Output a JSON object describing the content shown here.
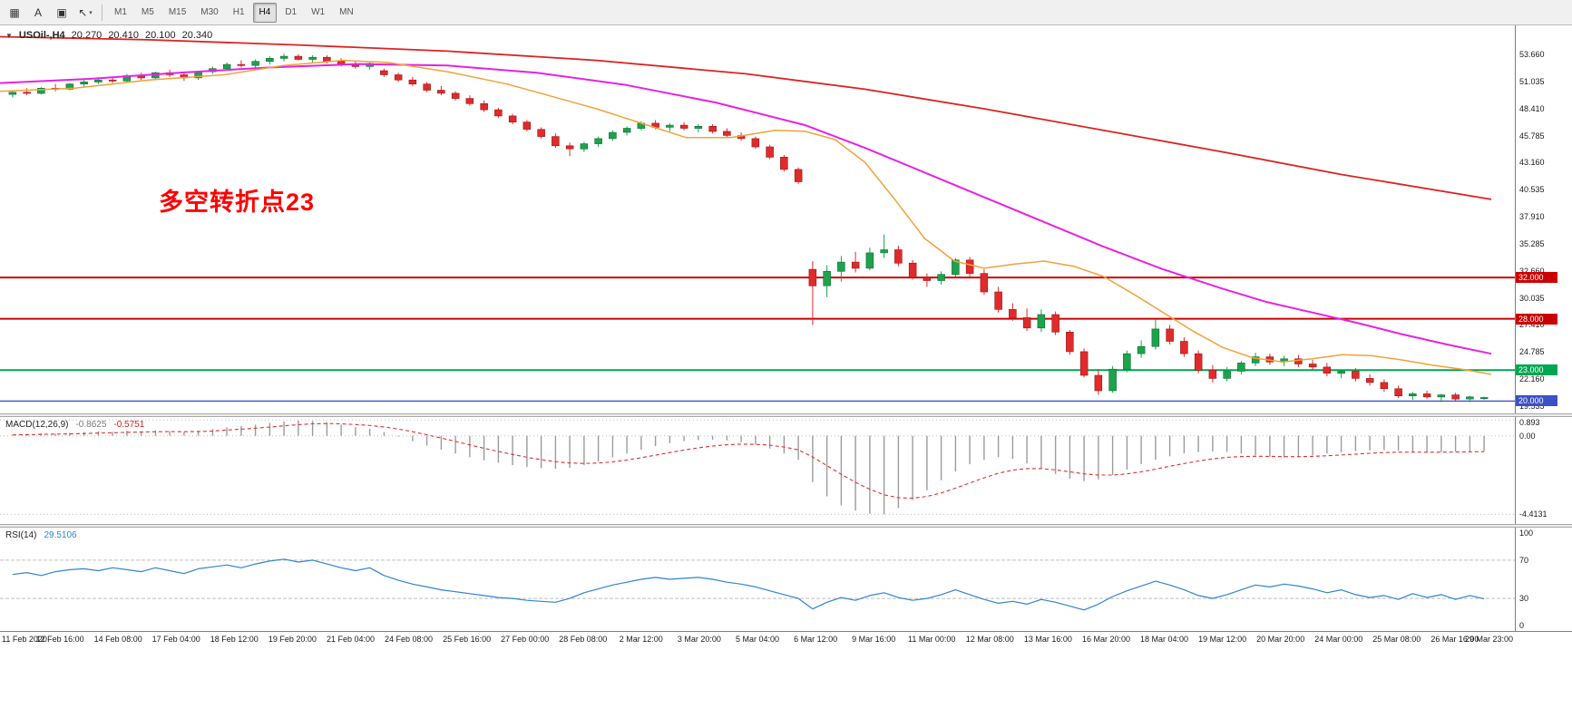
{
  "toolbar": {
    "buttons": [
      {
        "name": "chart-grid-icon",
        "glyph": "▦"
      },
      {
        "name": "text-label-icon",
        "glyph": "A"
      },
      {
        "name": "text-box-icon",
        "glyph": "▣"
      },
      {
        "name": "cursor-tool-icon",
        "glyph": "↖",
        "caret": "▾"
      }
    ],
    "timeframes": [
      "M1",
      "M5",
      "M15",
      "M30",
      "H1",
      "H4",
      "D1",
      "W1",
      "MN"
    ],
    "active_timeframe": "H4"
  },
  "chart": {
    "collapse_icon": "▼",
    "symbol_label": "USOil-,H4",
    "ohlc": [
      "20.270",
      "20.410",
      "20.100",
      "20.340"
    ],
    "annotation": {
      "text": "多空转折点23",
      "color": "#ff0000"
    }
  },
  "chart_data": {
    "type": "candlestick",
    "symbol": "USOil",
    "timeframe": "H4",
    "y_range": [
      18.8,
      56.5
    ],
    "price_axis_ticks": [
      "53.660",
      "51.035",
      "48.410",
      "45.785",
      "43.160",
      "40.535",
      "37.910",
      "35.285",
      "32.660",
      "30.035",
      "27.410",
      "24.785",
      "22.160",
      "19.535"
    ],
    "colors": {
      "bull": "#1ca34c",
      "bear": "#df2b2b",
      "bull_border": "#0d6e31",
      "bear_border": "#9e1515"
    },
    "candles": [
      [
        49.8,
        50.2,
        49.5,
        50.0
      ],
      [
        50.0,
        50.4,
        49.7,
        49.9
      ],
      [
        49.9,
        50.5,
        49.8,
        50.4
      ],
      [
        50.4,
        50.8,
        50.1,
        50.3
      ],
      [
        50.3,
        50.9,
        50.2,
        50.8
      ],
      [
        50.8,
        51.2,
        50.5,
        51.0
      ],
      [
        51.0,
        51.4,
        50.8,
        51.2
      ],
      [
        51.2,
        51.5,
        50.9,
        51.1
      ],
      [
        51.1,
        51.8,
        51.0,
        51.6
      ],
      [
        51.6,
        51.9,
        51.2,
        51.4
      ],
      [
        51.4,
        52.0,
        51.3,
        51.9
      ],
      [
        51.9,
        52.2,
        51.5,
        51.7
      ],
      [
        51.7,
        52.0,
        51.1,
        51.4
      ],
      [
        51.4,
        52.1,
        51.2,
        52.0
      ],
      [
        52.0,
        52.5,
        51.8,
        52.3
      ],
      [
        52.3,
        52.9,
        52.1,
        52.7
      ],
      [
        52.7,
        53.1,
        52.4,
        52.6
      ],
      [
        52.6,
        53.2,
        52.3,
        53.0
      ],
      [
        53.0,
        53.5,
        52.7,
        53.3
      ],
      [
        53.3,
        53.74,
        53.0,
        53.5
      ],
      [
        53.5,
        53.7,
        53.1,
        53.2
      ],
      [
        53.2,
        53.6,
        52.9,
        53.4
      ],
      [
        53.4,
        53.6,
        52.8,
        53.0
      ],
      [
        53.0,
        53.3,
        52.5,
        52.7
      ],
      [
        52.7,
        53.0,
        52.3,
        52.5
      ],
      [
        52.5,
        52.9,
        52.2,
        52.8
      ],
      [
        52.1,
        52.3,
        51.5,
        51.7
      ],
      [
        51.7,
        51.9,
        51.0,
        51.2
      ],
      [
        51.2,
        51.5,
        50.6,
        50.8
      ],
      [
        50.8,
        51.0,
        50.0,
        50.2
      ],
      [
        50.2,
        50.6,
        49.7,
        49.9
      ],
      [
        49.9,
        50.1,
        49.2,
        49.4
      ],
      [
        49.4,
        49.7,
        48.7,
        48.9
      ],
      [
        48.9,
        49.2,
        48.1,
        48.3
      ],
      [
        48.3,
        48.5,
        47.5,
        47.7
      ],
      [
        47.7,
        47.9,
        46.9,
        47.1
      ],
      [
        47.1,
        47.3,
        46.2,
        46.4
      ],
      [
        46.4,
        46.6,
        45.5,
        45.7
      ],
      [
        45.7,
        46.0,
        44.6,
        44.8
      ],
      [
        44.8,
        45.1,
        43.8,
        44.5
      ],
      [
        44.5,
        45.2,
        44.2,
        45.0
      ],
      [
        45.0,
        45.7,
        44.7,
        45.5
      ],
      [
        45.5,
        46.3,
        45.3,
        46.1
      ],
      [
        46.1,
        46.7,
        45.8,
        46.5
      ],
      [
        46.5,
        47.2,
        46.3,
        47.0
      ],
      [
        47.0,
        47.3,
        46.4,
        46.6
      ],
      [
        46.6,
        47.0,
        46.2,
        46.8
      ],
      [
        46.8,
        47.1,
        46.3,
        46.5
      ],
      [
        46.5,
        46.9,
        46.1,
        46.7
      ],
      [
        46.7,
        46.9,
        46.0,
        46.2
      ],
      [
        46.2,
        46.5,
        45.6,
        45.8
      ],
      [
        45.8,
        46.1,
        45.3,
        45.5
      ],
      [
        45.5,
        45.7,
        44.5,
        44.7
      ],
      [
        44.7,
        44.9,
        43.5,
        43.7
      ],
      [
        43.7,
        43.9,
        42.3,
        42.5
      ],
      [
        42.5,
        42.7,
        41.1,
        41.3
      ],
      [
        32.8,
        33.6,
        27.4,
        31.2
      ],
      [
        31.2,
        33.2,
        30.1,
        32.6
      ],
      [
        32.6,
        34.1,
        31.6,
        33.5
      ],
      [
        33.5,
        34.5,
        32.5,
        32.9
      ],
      [
        32.9,
        34.9,
        32.7,
        34.4
      ],
      [
        34.4,
        36.2,
        33.9,
        34.7
      ],
      [
        34.7,
        35.1,
        33.1,
        33.4
      ],
      [
        33.4,
        33.7,
        31.8,
        32.0
      ],
      [
        32.0,
        32.4,
        31.1,
        31.7
      ],
      [
        31.7,
        32.6,
        31.3,
        32.3
      ],
      [
        32.3,
        33.9,
        32.1,
        33.7
      ],
      [
        33.7,
        34.0,
        32.1,
        32.4
      ],
      [
        32.4,
        32.8,
        30.3,
        30.6
      ],
      [
        30.6,
        31.1,
        28.6,
        28.9
      ],
      [
        28.9,
        29.5,
        27.8,
        28.1
      ],
      [
        28.1,
        29.0,
        26.8,
        27.1
      ],
      [
        27.1,
        28.9,
        26.7,
        28.4
      ],
      [
        28.4,
        28.7,
        26.4,
        26.7
      ],
      [
        26.7,
        26.9,
        24.5,
        24.8
      ],
      [
        24.8,
        25.1,
        22.3,
        22.5
      ],
      [
        22.5,
        23.1,
        20.6,
        21.0
      ],
      [
        21.0,
        23.4,
        20.8,
        23.1
      ],
      [
        23.1,
        24.9,
        22.8,
        24.6
      ],
      [
        24.6,
        25.9,
        24.2,
        25.3
      ],
      [
        25.3,
        27.9,
        25.0,
        27.0
      ],
      [
        27.0,
        27.4,
        25.5,
        25.8
      ],
      [
        25.8,
        26.2,
        24.3,
        24.6
      ],
      [
        24.6,
        24.9,
        22.7,
        23.0
      ],
      [
        23.0,
        23.5,
        21.8,
        22.2
      ],
      [
        22.2,
        23.3,
        21.9,
        22.9
      ],
      [
        22.9,
        23.9,
        22.6,
        23.7
      ],
      [
        23.7,
        24.7,
        23.4,
        24.3
      ],
      [
        24.3,
        24.6,
        23.5,
        23.8
      ],
      [
        23.8,
        24.4,
        23.4,
        24.1
      ],
      [
        24.1,
        24.5,
        23.3,
        23.6
      ],
      [
        23.6,
        24.0,
        23.0,
        23.3
      ],
      [
        23.3,
        23.7,
        22.4,
        22.7
      ],
      [
        22.7,
        23.1,
        22.2,
        22.9
      ],
      [
        22.9,
        23.2,
        21.9,
        22.2
      ],
      [
        22.2,
        22.6,
        21.5,
        21.8
      ],
      [
        21.8,
        22.1,
        20.9,
        21.2
      ],
      [
        21.2,
        21.5,
        20.3,
        20.5
      ],
      [
        20.5,
        20.9,
        20.1,
        20.7
      ],
      [
        20.7,
        21.0,
        20.2,
        20.4
      ],
      [
        20.4,
        20.7,
        19.9,
        20.6
      ],
      [
        20.6,
        20.8,
        20.0,
        20.2
      ],
      [
        20.2,
        20.5,
        19.9,
        20.4
      ],
      [
        20.27,
        20.41,
        20.1,
        20.34
      ]
    ],
    "moving_averages": [
      {
        "name": "ma-slow",
        "color": "#dd2222",
        "width": 1.8,
        "points": [
          [
            0,
            55.4
          ],
          [
            0.1,
            55.1
          ],
          [
            0.2,
            54.6
          ],
          [
            0.3,
            54.0
          ],
          [
            0.4,
            53.1
          ],
          [
            0.5,
            51.8
          ],
          [
            0.58,
            50.3
          ],
          [
            0.66,
            48.4
          ],
          [
            0.74,
            46.3
          ],
          [
            0.82,
            44.2
          ],
          [
            0.9,
            42.0
          ],
          [
            1,
            39.6
          ]
        ]
      },
      {
        "name": "ma-medium",
        "color": "#e522e5",
        "width": 2,
        "points": [
          [
            0,
            50.9
          ],
          [
            0.06,
            51.3
          ],
          [
            0.12,
            51.9
          ],
          [
            0.18,
            52.4
          ],
          [
            0.24,
            52.75
          ],
          [
            0.3,
            52.6
          ],
          [
            0.36,
            51.9
          ],
          [
            0.42,
            50.7
          ],
          [
            0.48,
            49.0
          ],
          [
            0.54,
            46.8
          ],
          [
            0.58,
            44.6
          ],
          [
            0.62,
            42.2
          ],
          [
            0.66,
            39.8
          ],
          [
            0.7,
            37.4
          ],
          [
            0.74,
            35.0
          ],
          [
            0.78,
            32.8
          ],
          [
            0.82,
            30.9
          ],
          [
            0.85,
            29.6
          ],
          [
            0.88,
            28.6
          ],
          [
            0.91,
            27.6
          ],
          [
            0.94,
            26.5
          ],
          [
            0.97,
            25.5
          ],
          [
            1,
            24.6
          ]
        ]
      },
      {
        "name": "ma-fast",
        "color": "#efa33a",
        "width": 1.5,
        "points": [
          [
            0,
            50.1
          ],
          [
            0.05,
            50.4
          ],
          [
            0.1,
            51.2
          ],
          [
            0.15,
            51.7
          ],
          [
            0.19,
            52.6
          ],
          [
            0.23,
            53.1
          ],
          [
            0.26,
            52.9
          ],
          [
            0.3,
            52.0
          ],
          [
            0.34,
            50.8
          ],
          [
            0.37,
            49.6
          ],
          [
            0.4,
            48.4
          ],
          [
            0.43,
            47.0
          ],
          [
            0.46,
            45.6
          ],
          [
            0.49,
            45.6
          ],
          [
            0.52,
            46.3
          ],
          [
            0.54,
            46.2
          ],
          [
            0.56,
            45.4
          ],
          [
            0.58,
            43.2
          ],
          [
            0.6,
            39.6
          ],
          [
            0.62,
            35.8
          ],
          [
            0.64,
            33.6
          ],
          [
            0.66,
            32.9
          ],
          [
            0.68,
            33.3
          ],
          [
            0.7,
            33.6
          ],
          [
            0.72,
            33.1
          ],
          [
            0.74,
            32.1
          ],
          [
            0.76,
            30.4
          ],
          [
            0.78,
            28.6
          ],
          [
            0.8,
            26.8
          ],
          [
            0.82,
            25.2
          ],
          [
            0.84,
            24.2
          ],
          [
            0.86,
            23.8
          ],
          [
            0.88,
            24.1
          ],
          [
            0.9,
            24.5
          ],
          [
            0.92,
            24.4
          ],
          [
            0.94,
            24.0
          ],
          [
            0.96,
            23.5
          ],
          [
            0.98,
            23.1
          ],
          [
            1,
            22.6
          ]
        ]
      }
    ],
    "hlines": [
      {
        "price": 32.0,
        "label": "32.000",
        "color": "#cc0000",
        "width": 2
      },
      {
        "price": 28.0,
        "label": "28.000",
        "color": "#cc0000",
        "width": 2
      },
      {
        "price": 23.0,
        "label": "23.000",
        "color": "#00a651",
        "width": 2
      },
      {
        "price": 20.0,
        "label": "20.000",
        "color": "#3c50c8",
        "width": 1.4
      }
    ],
    "macd": {
      "label": "MACD(12,26,9)",
      "value_str": "-0.8625",
      "signal_str": "-0.5751",
      "ticks": [
        "0.893",
        "0.00",
        "-4.4131"
      ],
      "y_range": [
        -4.95,
        1.05
      ],
      "histogram_color": "#9b9b9b",
      "signal_color": "#e03030",
      "histogram": [
        0.05,
        0.1,
        0.14,
        0.12,
        0.16,
        0.2,
        0.24,
        0.22,
        0.28,
        0.25,
        0.3,
        0.26,
        0.2,
        0.28,
        0.38,
        0.48,
        0.55,
        0.62,
        0.72,
        0.8,
        0.85,
        0.83,
        0.75,
        0.62,
        0.48,
        0.4,
        0.2,
        -0.05,
        -0.3,
        -0.55,
        -0.78,
        -1.0,
        -1.2,
        -1.38,
        -1.52,
        -1.65,
        -1.75,
        -1.82,
        -1.85,
        -1.8,
        -1.65,
        -1.45,
        -1.22,
        -1.0,
        -0.78,
        -0.58,
        -0.42,
        -0.3,
        -0.24,
        -0.22,
        -0.26,
        -0.35,
        -0.5,
        -0.72,
        -1.0,
        -1.35,
        -2.6,
        -3.4,
        -3.9,
        -4.2,
        -4.38,
        -4.41,
        -4.05,
        -3.6,
        -3.05,
        -2.5,
        -2.0,
        -1.6,
        -1.35,
        -1.2,
        -1.3,
        -1.55,
        -1.85,
        -2.15,
        -2.4,
        -2.55,
        -2.45,
        -2.2,
        -1.9,
        -1.6,
        -1.35,
        -1.15,
        -1.0,
        -0.92,
        -0.88,
        -0.92,
        -1.0,
        -1.1,
        -1.18,
        -1.22,
        -1.18,
        -1.1,
        -1.0,
        -0.92,
        -0.86,
        -0.82,
        -0.8,
        -0.84,
        -0.9,
        -0.94,
        -0.92,
        -0.89,
        -0.87,
        -0.86
      ]
    },
    "rsi": {
      "label": "RSI(14)",
      "value_str": "29.5106",
      "ticks": [
        "100",
        "70",
        "30",
        "0"
      ],
      "levels": [
        70,
        30
      ],
      "y_range": [
        -4,
        104
      ],
      "line_color": "#2f84d4",
      "values": [
        55,
        57,
        54,
        58,
        60,
        61,
        59,
        62,
        60,
        58,
        62,
        59,
        56,
        61,
        63,
        65,
        62,
        66,
        69,
        71,
        68,
        70,
        66,
        62,
        59,
        62,
        54,
        49,
        45,
        42,
        39,
        37,
        35,
        33,
        31,
        30,
        28,
        27,
        26,
        30,
        36,
        40,
        44,
        47,
        50,
        52,
        50,
        51,
        52,
        50,
        47,
        45,
        42,
        38,
        34,
        30,
        19,
        26,
        31,
        28,
        33,
        36,
        31,
        28,
        30,
        34,
        39,
        34,
        29,
        25,
        27,
        24,
        29,
        26,
        22,
        18,
        24,
        32,
        38,
        43,
        48,
        44,
        39,
        33,
        30,
        34,
        39,
        44,
        42,
        45,
        43,
        40,
        36,
        39,
        34,
        31,
        33,
        29,
        35,
        31,
        34,
        29,
        33,
        29.5
      ]
    },
    "time_labels": [
      "11 Feb 2020",
      "12 Feb 16:00",
      "14 Feb 08:00",
      "17 Feb 04:00",
      "18 Feb 12:00",
      "19 Feb 20:00",
      "21 Feb 04:00",
      "24 Feb 08:00",
      "25 Feb 16:00",
      "27 Feb 00:00",
      "28 Feb 08:00",
      "2 Mar 12:00",
      "3 Mar 20:00",
      "5 Mar 04:00",
      "6 Mar 12:00",
      "9 Mar 16:00",
      "11 Mar 00:00",
      "12 Mar 08:00",
      "13 Mar 16:00",
      "16 Mar 20:00",
      "18 Mar 04:00",
      "19 Mar 12:00",
      "20 Mar 20:00",
      "24 Mar 00:00",
      "25 Mar 08:00",
      "26 Mar 16:00",
      "29 Mar 23:00"
    ]
  }
}
